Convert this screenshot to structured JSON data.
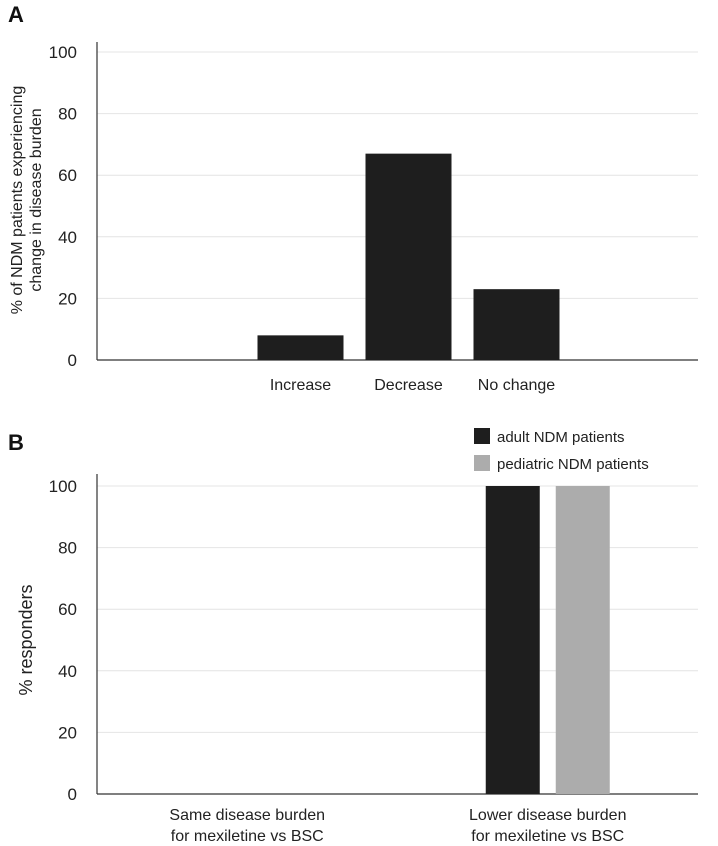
{
  "chart_data": [
    {
      "panel": "A",
      "type": "bar",
      "title": "",
      "xlabel": "",
      "ylabel_lines": [
        "% of NDM patients experiencing",
        "change in disease burden"
      ],
      "categories": [
        "Increase",
        "Decrease",
        "No change"
      ],
      "values": [
        8,
        67,
        23
      ],
      "color": "#1e1e1e",
      "ylim": [
        0,
        100
      ],
      "yticks": [
        0,
        20,
        40,
        60,
        80,
        100
      ],
      "grid": true
    },
    {
      "panel": "B",
      "type": "bar",
      "title": "",
      "xlabel": "",
      "ylabel": "% responders",
      "categories": [
        [
          "Same disease burden",
          "for mexiletine vs BSC"
        ],
        [
          "Lower disease burden",
          "for mexiletine vs BSC"
        ]
      ],
      "series": [
        {
          "name": "adult NDM patients",
          "color": "#1e1e1e",
          "values": [
            0,
            100
          ]
        },
        {
          "name": "pediatric NDM patients",
          "color": "#acacac",
          "values": [
            0,
            100
          ]
        }
      ],
      "legend_position": "top-right",
      "ylim": [
        0,
        100
      ],
      "yticks": [
        0,
        20,
        40,
        60,
        80,
        100
      ],
      "grid": true
    }
  ]
}
